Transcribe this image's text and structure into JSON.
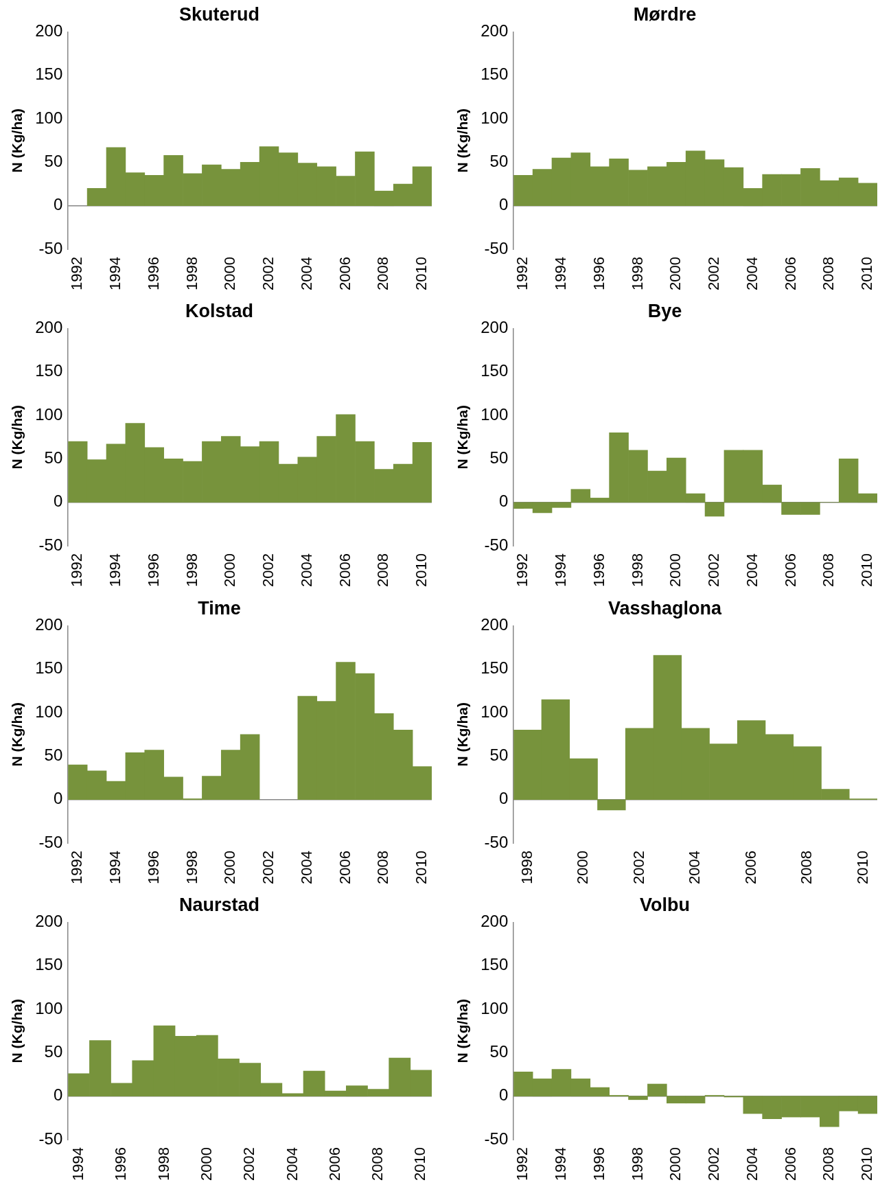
{
  "chart_data": [
    {
      "type": "bar",
      "title": "Skuterud",
      "ylabel": "N (Kg/ha)",
      "color": "#77933c",
      "categories": [
        "1992",
        null,
        "1994",
        null,
        "1996",
        null,
        "1998",
        null,
        "2000",
        null,
        "2002",
        null,
        "2004",
        null,
        "2006",
        null,
        "2008",
        null,
        "2010"
      ],
      "values": [
        null,
        20,
        67,
        38,
        35,
        58,
        37,
        47,
        42,
        50,
        68,
        61,
        49,
        45,
        34,
        62,
        17,
        25,
        45
      ],
      "ylim": [
        -50,
        200
      ],
      "yticks": [
        -50,
        0,
        50,
        100,
        150,
        200
      ]
    },
    {
      "type": "bar",
      "title": "Mørdre",
      "ylabel": "N (Kg/ha)",
      "color": "#77933c",
      "categories": [
        "1992",
        null,
        "1994",
        null,
        "1996",
        null,
        "1998",
        null,
        "2000",
        null,
        "2002",
        null,
        "2004",
        null,
        "2006",
        null,
        "2008",
        null,
        "2010"
      ],
      "values": [
        35,
        42,
        55,
        61,
        45,
        54,
        41,
        45,
        50,
        63,
        53,
        44,
        20,
        36,
        36,
        43,
        29,
        32,
        26
      ],
      "ylim": [
        -50,
        200
      ],
      "yticks": [
        -50,
        0,
        50,
        100,
        150,
        200
      ]
    },
    {
      "type": "bar",
      "title": "Kolstad",
      "ylabel": "N (Kg/ha)",
      "color": "#77933c",
      "categories": [
        "1992",
        null,
        "1994",
        null,
        "1996",
        null,
        "1998",
        null,
        "2000",
        null,
        "2002",
        null,
        "2004",
        null,
        "2006",
        null,
        "2008",
        null,
        "2010"
      ],
      "values": [
        70,
        49,
        67,
        91,
        63,
        50,
        47,
        70,
        76,
        64,
        70,
        44,
        52,
        76,
        101,
        70,
        38,
        44,
        69
      ],
      "ylim": [
        -50,
        200
      ],
      "yticks": [
        -50,
        0,
        50,
        100,
        150,
        200
      ]
    },
    {
      "type": "bar",
      "title": "Bye",
      "ylabel": "N (Kg/ha)",
      "color": "#77933c",
      "categories": [
        "1992",
        null,
        "1994",
        null,
        "1996",
        null,
        "1998",
        null,
        "2000",
        null,
        "2002",
        null,
        "2004",
        null,
        "2006",
        null,
        "2008",
        null,
        "2010"
      ],
      "values": [
        -7,
        -12,
        -6,
        15,
        5,
        80,
        60,
        36,
        51,
        10,
        -16,
        60,
        60,
        20,
        -14,
        -14,
        0,
        50,
        10
      ],
      "ylim": [
        -50,
        200
      ],
      "yticks": [
        -50,
        0,
        50,
        100,
        150,
        200
      ]
    },
    {
      "type": "bar",
      "title": "Time",
      "ylabel": "N (Kg/ha)",
      "color": "#77933c",
      "categories": [
        "1992",
        null,
        "1994",
        null,
        "1996",
        null,
        "1998",
        null,
        "2000",
        null,
        "2002",
        null,
        "2004",
        null,
        "2006",
        null,
        "2008",
        null,
        "2010"
      ],
      "values": [
        40,
        33,
        21,
        54,
        57,
        26,
        1,
        27,
        57,
        75,
        null,
        null,
        119,
        113,
        158,
        145,
        99,
        80,
        38
      ],
      "ylim": [
        -50,
        200
      ],
      "yticks": [
        -50,
        0,
        50,
        100,
        150,
        200
      ]
    },
    {
      "type": "bar",
      "title": "Vasshaglona",
      "ylabel": "N (Kg/ha)",
      "color": "#77933c",
      "categories": [
        "1998",
        null,
        "2000",
        null,
        "2002",
        null,
        "2004",
        null,
        "2006",
        null,
        "2008",
        null,
        "2010"
      ],
      "values": [
        80,
        115,
        47,
        -12,
        82,
        166,
        82,
        64,
        91,
        75,
        61,
        12,
        1
      ],
      "ylim": [
        -50,
        200
      ],
      "yticks": [
        -50,
        0,
        50,
        100,
        150,
        200
      ]
    },
    {
      "type": "bar",
      "title": "Naurstad",
      "ylabel": "N (Kg/ha)",
      "color": "#77933c",
      "categories": [
        "1994",
        null,
        "1996",
        null,
        "1998",
        null,
        "2000",
        null,
        "2002",
        null,
        "2004",
        null,
        "2006",
        null,
        "2008",
        null,
        "2010"
      ],
      "values": [
        26,
        64,
        15,
        41,
        81,
        69,
        70,
        43,
        38,
        15,
        3,
        29,
        6,
        12,
        8,
        44,
        30
      ],
      "ylim": [
        -50,
        200
      ],
      "yticks": [
        -50,
        0,
        50,
        100,
        150,
        200
      ]
    },
    {
      "type": "bar",
      "title": "Volbu",
      "ylabel": "N (Kg/ha)",
      "color": "#77933c",
      "categories": [
        "1992",
        null,
        "1994",
        null,
        "1996",
        null,
        "1998",
        null,
        "2000",
        null,
        "2002",
        null,
        "2004",
        null,
        "2006",
        null,
        "2008",
        null,
        "2010"
      ],
      "values": [
        28,
        20,
        31,
        20,
        10,
        1,
        -4,
        14,
        -8,
        -8,
        1,
        -1,
        -20,
        -26,
        -24,
        -24,
        -35,
        -17,
        -20
      ],
      "ylim": [
        -50,
        200
      ],
      "yticks": [
        -50,
        0,
        50,
        100,
        150,
        200
      ]
    }
  ]
}
